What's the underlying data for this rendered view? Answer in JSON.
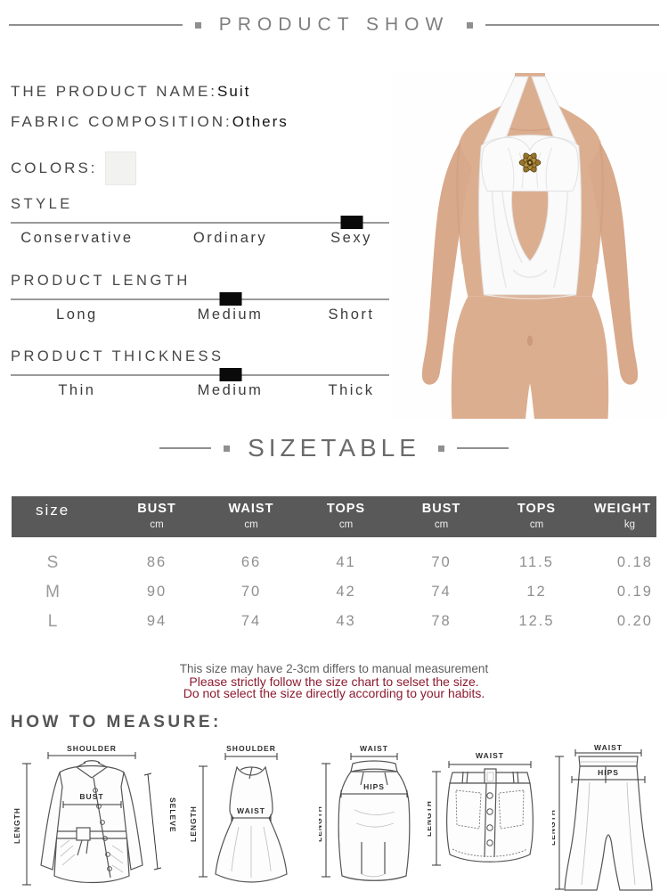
{
  "header": {
    "title": "PRODUCT SHOW"
  },
  "product_info": {
    "name_label": "THE PRODUCT NAME:",
    "name_value": "Suit",
    "fabric_label": "FABRIC COMPOSITION:",
    "fabric_value": "Others",
    "colors_label": "COLORS:",
    "swatch_color": "#f2f2f0"
  },
  "attributes": [
    {
      "title": "STYLE",
      "options": [
        "Conservative",
        "Ordinary",
        "Sexy"
      ],
      "selected_index": 2
    },
    {
      "title": "PRODUCT LENGTH",
      "options": [
        "Long",
        "Medium",
        "Short"
      ],
      "selected_index": 1
    },
    {
      "title": "PRODUCT THICKNESS",
      "options": [
        "Thin",
        "Medium",
        "Thick"
      ],
      "selected_index": 1
    }
  ],
  "size_section": {
    "title": "SIZETABLE"
  },
  "size_table": {
    "columns": [
      {
        "label": "size",
        "unit": ""
      },
      {
        "label": "BUST",
        "unit": "cm"
      },
      {
        "label": "WAIST",
        "unit": "cm"
      },
      {
        "label": "TOPS",
        "unit": "cm"
      },
      {
        "label": "BUST",
        "unit": "cm"
      },
      {
        "label": "TOPS",
        "unit": "cm"
      },
      {
        "label": "WEIGHT",
        "unit": "kg"
      }
    ],
    "rows": [
      {
        "label": "S",
        "values": [
          "86",
          "66",
          "41",
          "70",
          "11.5",
          "0.18"
        ]
      },
      {
        "label": "M",
        "values": [
          "90",
          "70",
          "42",
          "74",
          "12",
          "0.19"
        ]
      },
      {
        "label": "L",
        "values": [
          "94",
          "74",
          "43",
          "78",
          "12.5",
          "0.20"
        ]
      }
    ]
  },
  "notes": {
    "measurement": "This size may have 2-3cm differs to manual measurement",
    "warning_line1": "Please strictly follow the size chart to selset the size.",
    "warning_line2": "Do not select the size directly according to your habits."
  },
  "measure": {
    "title": "HOW TO MEASURE:",
    "figures": [
      {
        "name": "jacket",
        "labels": {
          "shoulder": "SHOULDER",
          "length": "LENGTH",
          "bust": "BUST",
          "sleeve": "SELEVE"
        }
      },
      {
        "name": "dress",
        "labels": {
          "shoulder": "SHOULDER",
          "length": "LENGTH",
          "waist": "WAIST"
        }
      },
      {
        "name": "long-skirt",
        "labels": {
          "waist": "WAIST",
          "hips": "HIPS",
          "length": "LENGTH"
        }
      },
      {
        "name": "mini-skirt",
        "labels": {
          "waist": "WAIST",
          "length": "LENGTH"
        }
      },
      {
        "name": "pants",
        "labels": {
          "waist": "WAIST",
          "hips": "HIPS",
          "length": "LENGTH"
        }
      }
    ]
  },
  "palette": {
    "title_gray": "#8f8f8f",
    "heading_gray": "#474747",
    "table_header_bg": "#595959",
    "table_text_gray": "#8f8f8f",
    "warning_red": "#8c1a2e",
    "marker_black": "#0a0a0a",
    "line_gray": "#9a9a9a"
  }
}
